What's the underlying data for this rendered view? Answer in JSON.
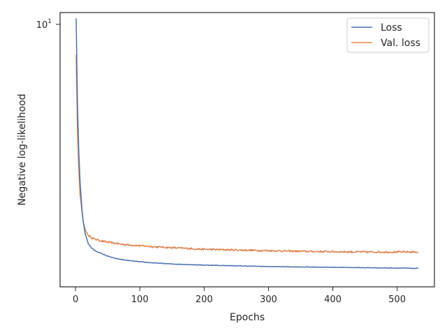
{
  "chart_data": {
    "type": "line",
    "title": "",
    "xlabel": "Epochs",
    "ylabel": "Negative log-likelihood",
    "yscale": "log",
    "xlim": [
      -24,
      558
    ],
    "ylim": [
      1.8,
      10.8
    ],
    "x_ticks": [
      0,
      100,
      200,
      300,
      400,
      500
    ],
    "x_tick_labels": [
      "0",
      "100",
      "200",
      "300",
      "400",
      "500"
    ],
    "y_major_tick": 10,
    "y_major_tick_label": {
      "base": "10",
      "exponent": "1"
    },
    "grid": false,
    "legend_position": "upper right",
    "series": [
      {
        "name": "Loss",
        "color": "#4c72b0",
        "noise": 0.002,
        "x": [
          1,
          3,
          5,
          7,
          10,
          12,
          15,
          18,
          20,
          25,
          30,
          40,
          50,
          60,
          70,
          80,
          100,
          120,
          150,
          200,
          250,
          300,
          350,
          400,
          450,
          500,
          533
        ],
        "y": [
          10.4,
          6.0,
          4.4,
          3.6,
          3.0,
          2.75,
          2.55,
          2.45,
          2.38,
          2.32,
          2.28,
          2.24,
          2.2,
          2.17,
          2.155,
          2.14,
          2.12,
          2.105,
          2.09,
          2.075,
          2.065,
          2.055,
          2.05,
          2.045,
          2.04,
          2.035,
          2.03
        ]
      },
      {
        "name": "Val. loss",
        "color": "#dd8452",
        "noise": 0.006,
        "x": [
          1,
          3,
          5,
          7,
          10,
          12,
          15,
          18,
          20,
          25,
          30,
          40,
          50,
          60,
          70,
          80,
          100,
          120,
          150,
          200,
          250,
          300,
          350,
          400,
          450,
          500,
          533
        ],
        "y": [
          8.2,
          5.0,
          3.9,
          3.3,
          2.95,
          2.75,
          2.62,
          2.55,
          2.52,
          2.48,
          2.46,
          2.43,
          2.41,
          2.395,
          2.38,
          2.37,
          2.355,
          2.34,
          2.325,
          2.3,
          2.29,
          2.28,
          2.27,
          2.265,
          2.26,
          2.26,
          2.26
        ]
      }
    ]
  }
}
